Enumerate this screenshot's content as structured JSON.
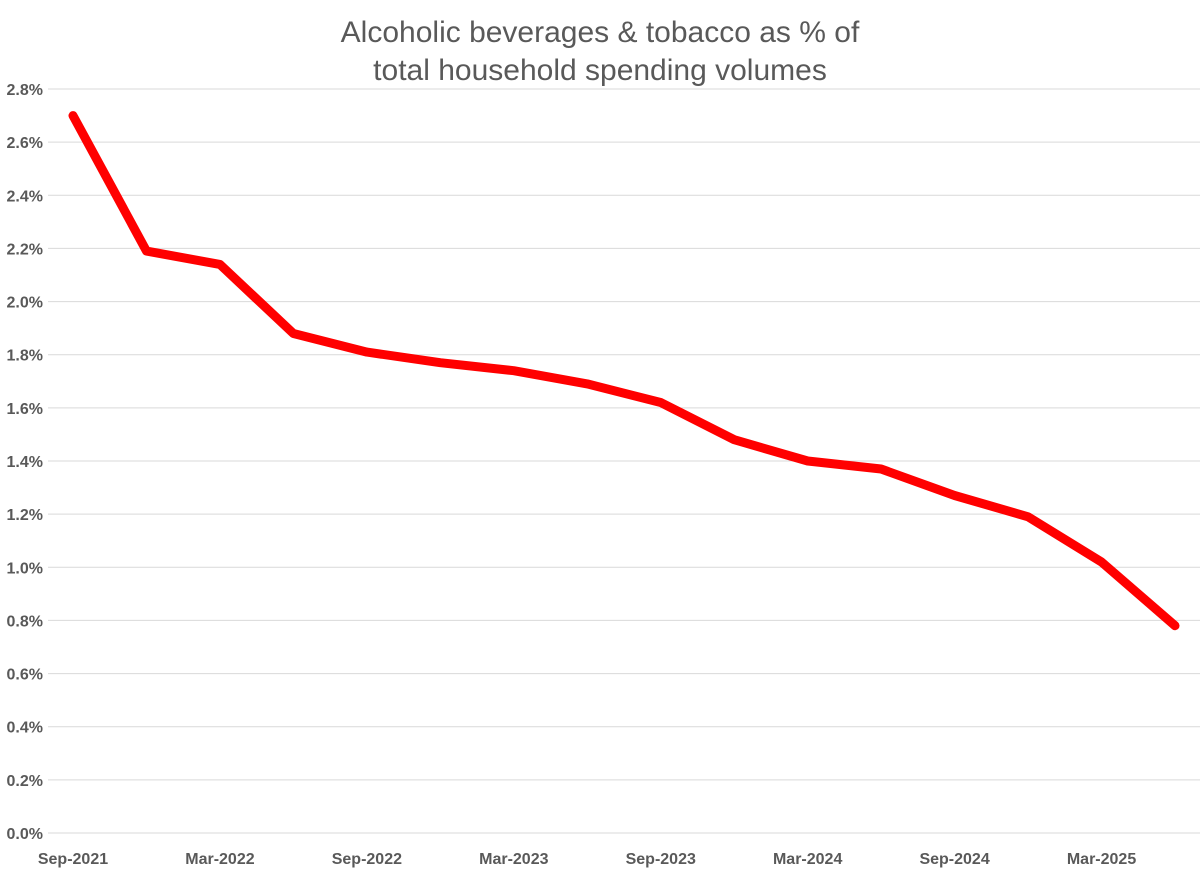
{
  "chart_data": {
    "type": "line",
    "title": [
      "Alcoholic beverages & tobacco as % of",
      "total household spending volumes"
    ],
    "xlabel": "",
    "ylabel": "",
    "x": [
      "Sep-2021",
      "Dec-2021",
      "Mar-2022",
      "Jun-2022",
      "Sep-2022",
      "Dec-2022",
      "Mar-2023",
      "Jun-2023",
      "Sep-2023",
      "Dec-2023",
      "Mar-2024",
      "Jun-2024",
      "Sep-2024",
      "Dec-2024",
      "Mar-2025",
      "Jun-2025"
    ],
    "x_tick_labels": [
      "Sep-2021",
      "Mar-2022",
      "Sep-2022",
      "Mar-2023",
      "Sep-2023",
      "Mar-2024",
      "Sep-2024",
      "Mar-2025"
    ],
    "series": [
      {
        "values": [
          2.7,
          2.19,
          2.14,
          1.88,
          1.81,
          1.77,
          1.74,
          1.69,
          1.62,
          1.48,
          1.4,
          1.37,
          1.27,
          1.19,
          1.02,
          0.78
        ],
        "color": "#ff0000"
      }
    ],
    "ylim": [
      0,
      2.8
    ],
    "y_ticks": [
      "0.0%",
      "0.2%",
      "0.4%",
      "0.6%",
      "0.8%",
      "1.0%",
      "1.2%",
      "1.4%",
      "1.6%",
      "1.8%",
      "2.0%",
      "2.2%",
      "2.4%",
      "2.6%",
      "2.8%"
    ],
    "y_tick_values": [
      0,
      0.2,
      0.4,
      0.6,
      0.8,
      1.0,
      1.2,
      1.4,
      1.6,
      1.8,
      2.0,
      2.2,
      2.4,
      2.6,
      2.8
    ],
    "grid": true,
    "legend": "none",
    "colors": {
      "line": "#ff0000",
      "grid": "#d9d9d9",
      "text": "#595959"
    }
  }
}
